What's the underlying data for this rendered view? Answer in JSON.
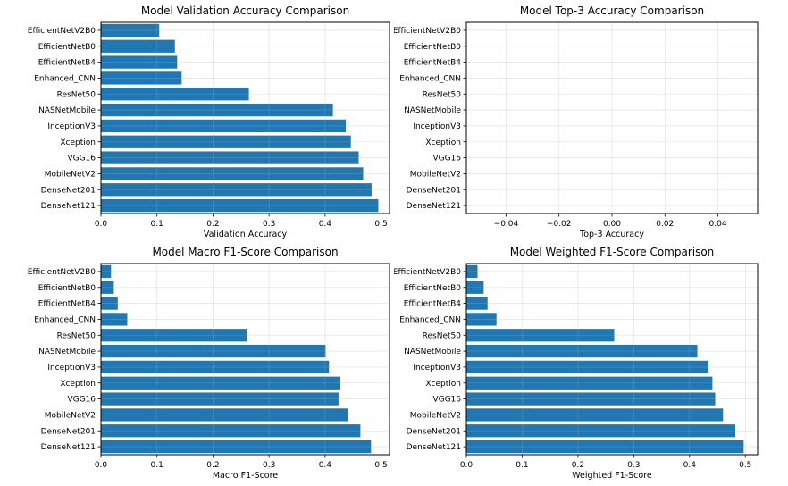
{
  "figure": {
    "background": "#ffffff",
    "bar_color": "#1f77b4",
    "grid_color": "#b0b0b0",
    "grid_opacity": 0.3,
    "spine_color": "#000000",
    "text_color": "#000000"
  },
  "chart_data": [
    {
      "type": "bar",
      "orientation": "horizontal",
      "title": "Model Validation Accuracy Comparison",
      "xlabel": "Validation Accuracy",
      "ylabel": "",
      "categories": [
        "EfficientNetV2B0",
        "EfficientNetB0",
        "EfficientNetB4",
        "Enhanced_CNN",
        "ResNet50",
        "NASNetMobile",
        "InceptionV3",
        "Xception",
        "VGG16",
        "MobileNetV2",
        "DenseNet201",
        "DenseNet121"
      ],
      "values": [
        0.104,
        0.132,
        0.136,
        0.144,
        0.264,
        0.414,
        0.437,
        0.446,
        0.46,
        0.468,
        0.483,
        0.495
      ],
      "xlim": [
        0,
        0.515
      ],
      "xticks": [
        0.0,
        0.1,
        0.2,
        0.3,
        0.4,
        0.5
      ],
      "xtick_labels": [
        "0.0",
        "0.1",
        "0.2",
        "0.3",
        "0.4",
        "0.5"
      ],
      "grid": true,
      "legend": null
    },
    {
      "type": "bar",
      "orientation": "horizontal",
      "title": "Model Top-3 Accuracy Comparison",
      "xlabel": "Top-3 Accuracy",
      "ylabel": "",
      "categories": [
        "EfficientNetV2B0",
        "EfficientNetB0",
        "EfficientNetB4",
        "Enhanced_CNN",
        "ResNet50",
        "NASNetMobile",
        "InceptionV3",
        "Xception",
        "VGG16",
        "MobileNetV2",
        "DenseNet201",
        "DenseNet121"
      ],
      "values": [
        0,
        0,
        0,
        0,
        0,
        0,
        0,
        0,
        0,
        0,
        0,
        0
      ],
      "xlim": [
        -0.055,
        0.055
      ],
      "xticks": [
        -0.04,
        -0.02,
        0.0,
        0.02,
        0.04
      ],
      "xtick_labels": [
        "−0.04",
        "−0.02",
        "0.00",
        "0.02",
        "0.04"
      ],
      "grid": true,
      "legend": null
    },
    {
      "type": "bar",
      "orientation": "horizontal",
      "title": "Model Macro F1-Score Comparison",
      "xlabel": "Macro F1-Score",
      "ylabel": "",
      "categories": [
        "EfficientNetV2B0",
        "EfficientNetB0",
        "EfficientNetB4",
        "Enhanced_CNN",
        "ResNet50",
        "NASNetMobile",
        "InceptionV3",
        "Xception",
        "VGG16",
        "MobileNetV2",
        "DenseNet201",
        "DenseNet121"
      ],
      "values": [
        0.018,
        0.023,
        0.03,
        0.047,
        0.26,
        0.401,
        0.407,
        0.426,
        0.424,
        0.44,
        0.463,
        0.482
      ],
      "xlim": [
        0,
        0.515
      ],
      "xticks": [
        0.0,
        0.1,
        0.2,
        0.3,
        0.4,
        0.5
      ],
      "xtick_labels": [
        "0.0",
        "0.1",
        "0.2",
        "0.3",
        "0.4",
        "0.5"
      ],
      "grid": true,
      "legend": null
    },
    {
      "type": "bar",
      "orientation": "horizontal",
      "title": "Model Weighted F1-Score Comparison",
      "xlabel": "Weighted F1-Score",
      "ylabel": "",
      "categories": [
        "EfficientNetV2B0",
        "EfficientNetB0",
        "EfficientNetB4",
        "Enhanced_CNN",
        "ResNet50",
        "NASNetMobile",
        "InceptionV3",
        "Xception",
        "VGG16",
        "MobileNetV2",
        "DenseNet201",
        "DenseNet121"
      ],
      "values": [
        0.02,
        0.031,
        0.038,
        0.054,
        0.265,
        0.414,
        0.434,
        0.441,
        0.446,
        0.46,
        0.482,
        0.497
      ],
      "xlim": [
        0,
        0.522
      ],
      "xticks": [
        0.0,
        0.1,
        0.2,
        0.3,
        0.4,
        0.5
      ],
      "xtick_labels": [
        "0.0",
        "0.1",
        "0.2",
        "0.3",
        "0.4",
        "0.5"
      ],
      "grid": true,
      "legend": null
    }
  ]
}
